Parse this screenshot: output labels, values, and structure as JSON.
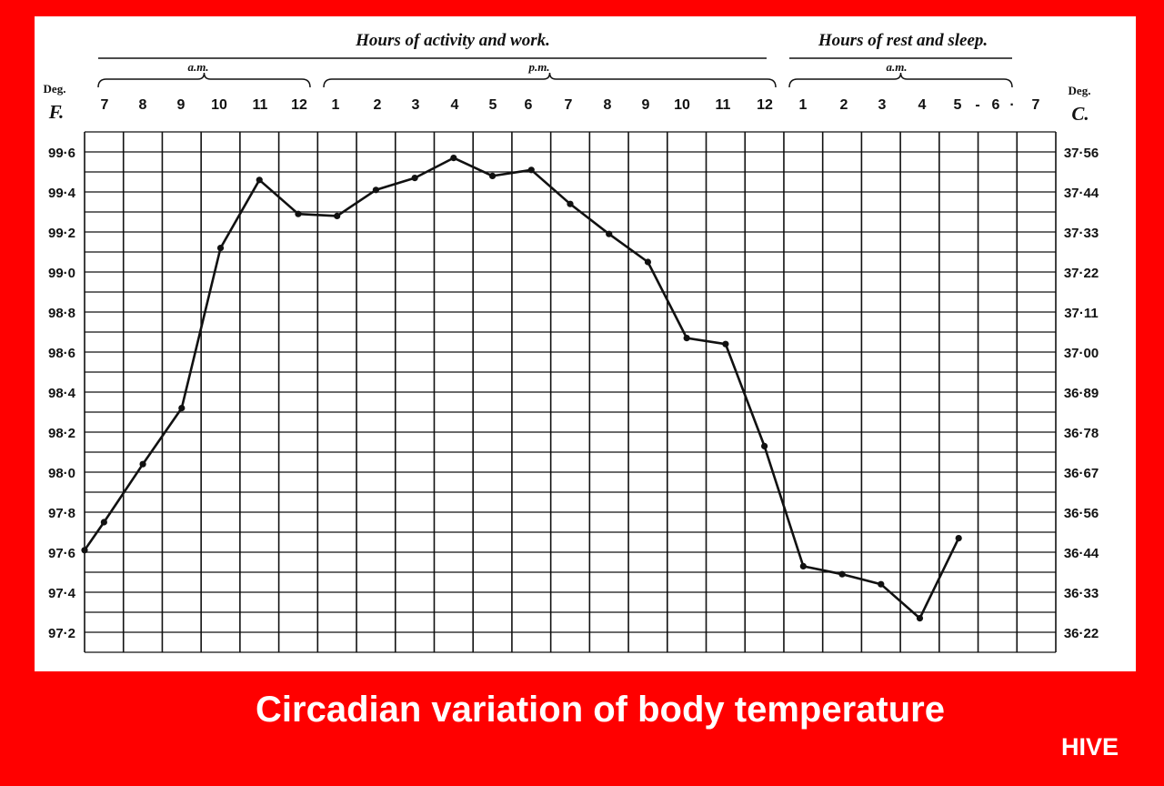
{
  "caption": "Circadian variation of body temperature",
  "brand": "HIVE",
  "colors": {
    "background": "#ff0000",
    "panel": "#ffffff",
    "ink": "#111111",
    "caption_text": "#ffffff"
  },
  "chart_data": {
    "type": "line",
    "title": "",
    "period_labels": [
      {
        "text": "Hours of activity and work.",
        "sub": [
          "a.m.",
          "p.m."
        ]
      },
      {
        "text": "Hours of rest and sleep.",
        "sub": [
          "a.m."
        ]
      }
    ],
    "left_unit": [
      "Deg.",
      "F."
    ],
    "right_unit": [
      "Deg.",
      "C."
    ],
    "x_ticks": [
      "7",
      "8",
      "9",
      "10",
      "11",
      "12",
      "1",
      "2",
      "3",
      "4",
      "5",
      "6",
      "7",
      "8",
      "9",
      "10",
      "11",
      "12",
      "1",
      "2",
      "3",
      "4",
      "5",
      "-",
      "6",
      "·",
      "7"
    ],
    "y_ticks_f": [
      "99·6",
      "99·4",
      "99·2",
      "99·0",
      "98·8",
      "98·6",
      "98·4",
      "98·2",
      "98·0",
      "97·8",
      "97·6",
      "97·4",
      "97·2"
    ],
    "y_ticks_c": [
      "37·56",
      "37·44",
      "37·33",
      "37·22",
      "37·11",
      "37·00",
      "36·89",
      "36·78",
      "36·67",
      "36·56",
      "36·44",
      "36·33",
      "36·22"
    ],
    "ylim_f": [
      97.1,
      99.7
    ],
    "grid": true,
    "series": [
      {
        "x_hours": [
          7,
          7.5,
          8.5,
          9.5,
          10.5,
          11.5,
          12.5,
          13.5,
          14.5,
          15.5,
          16.5,
          17.5,
          18.5,
          19.5,
          20.5,
          21.5,
          22.5,
          23.5,
          24.5,
          25.5,
          26.5,
          27.5,
          28.5,
          29.5
        ],
        "y_f": [
          97.61,
          97.75,
          98.04,
          98.32,
          99.12,
          99.46,
          99.29,
          99.28,
          99.41,
          99.47,
          99.57,
          99.48,
          99.51,
          99.34,
          99.19,
          99.05,
          98.67,
          98.64,
          98.13,
          97.53,
          97.49,
          97.44,
          97.27,
          97.67
        ]
      }
    ]
  }
}
